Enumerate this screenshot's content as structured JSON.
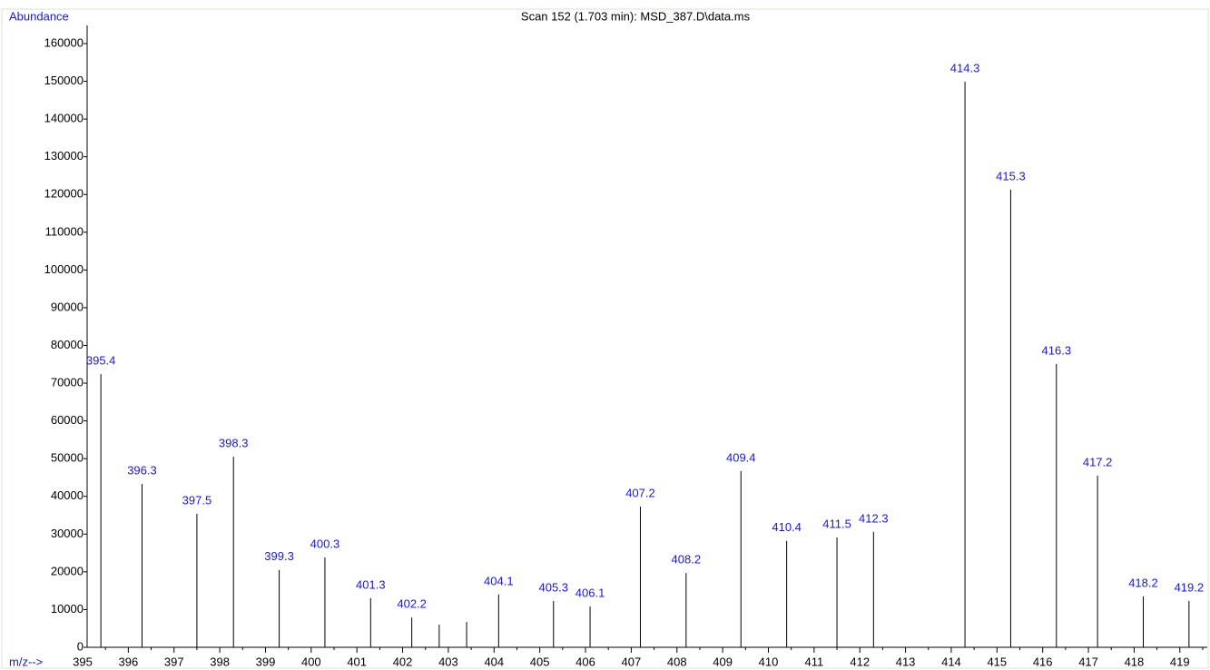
{
  "chart_data": {
    "type": "spectrum",
    "title": "Scan 152 (1.703 min): MSD_387.D\\data.ms",
    "y_label": "Abundance",
    "x_label": "m/z-->",
    "x": [
      395.4,
      396.3,
      397.5,
      398.3,
      399.3,
      400.3,
      401.3,
      402.2,
      402.8,
      403.4,
      404.1,
      405.3,
      406.1,
      407.2,
      408.2,
      409.4,
      410.4,
      411.5,
      412.3,
      414.3,
      415.3,
      416.3,
      417.2,
      418.2,
      419.2
    ],
    "values": [
      72400,
      43300,
      35400,
      50500,
      20500,
      23800,
      13000,
      7900,
      6000,
      6700,
      14000,
      12300,
      10800,
      37300,
      19700,
      46700,
      28200,
      29100,
      30600,
      149900,
      121300,
      75100,
      45500,
      13500,
      12300
    ],
    "peak_labels": [
      "395.4",
      "396.3",
      "397.5",
      "398.3",
      "399.3",
      "400.3",
      "401.3",
      "402.2",
      null,
      null,
      "404.1",
      "405.3",
      "406.1",
      "407.2",
      "408.2",
      "409.4",
      "410.4",
      "411.5",
      "412.3",
      "414.3",
      "415.3",
      "416.3",
      "417.2",
      "418.2",
      "419.2"
    ],
    "color": "#000000",
    "label_color": "#1a1acc",
    "xlim": [
      395,
      419.6
    ],
    "xticks": [
      395,
      396,
      397,
      398,
      399,
      400,
      401,
      402,
      403,
      404,
      405,
      406,
      407,
      408,
      409,
      410,
      411,
      412,
      413,
      414,
      415,
      416,
      417,
      418,
      419
    ],
    "ylim": [
      0,
      160000
    ],
    "yticks": [
      0,
      10000,
      20000,
      30000,
      40000,
      50000,
      60000,
      70000,
      80000,
      90000,
      100000,
      110000,
      120000,
      130000,
      140000,
      150000,
      160000
    ]
  }
}
